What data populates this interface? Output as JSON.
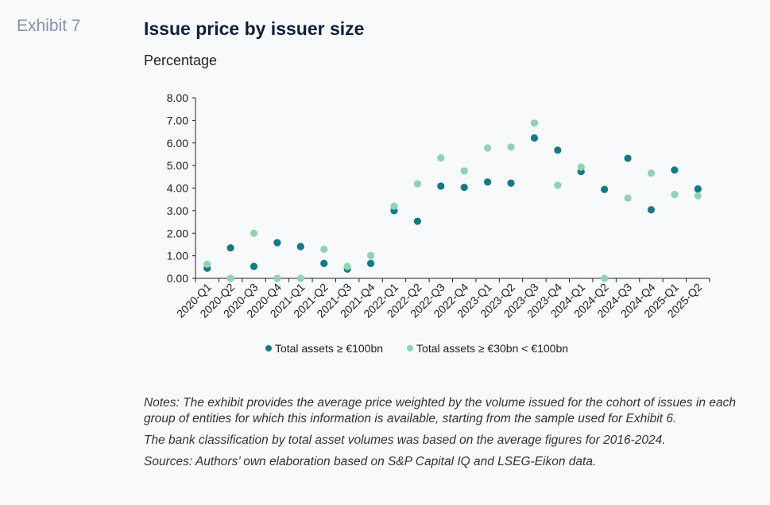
{
  "header": {
    "exhibit": "Exhibit 7",
    "title": "Issue price by issuer size",
    "subtitle": "Percentage"
  },
  "colors": {
    "series_large": "#167986",
    "series_mid": "#90d2b3",
    "axis": "#222222"
  },
  "chart_data": {
    "type": "scatter",
    "title": "Issue price by issuer size",
    "ylabel": "Percentage",
    "xlabel": "",
    "ylim": [
      0,
      8
    ],
    "y_ticks": [
      "0.00",
      "1.00",
      "2.00",
      "3.00",
      "4.00",
      "5.00",
      "6.00",
      "7.00",
      "8.00"
    ],
    "grid": false,
    "legend_position": "bottom",
    "categories": [
      "2020-Q1",
      "2020-Q2",
      "2020-Q3",
      "2020-Q4",
      "2021-Q1",
      "2021-Q2",
      "2021-Q3",
      "2021-Q4",
      "2022-Q1",
      "2022-Q2",
      "2022-Q3",
      "2022-Q4",
      "2023-Q1",
      "2023-Q2",
      "2023-Q3",
      "2023-Q4",
      "2024-Q1",
      "2024-Q2",
      "2024-Q3",
      "2024-Q4",
      "2025-Q1",
      "2025-Q2"
    ],
    "series": [
      {
        "name": "Total assets ≥ €100bn",
        "values": [
          0.45,
          1.35,
          0.53,
          1.58,
          1.41,
          0.66,
          0.41,
          0.66,
          3.0,
          2.53,
          4.09,
          4.03,
          4.27,
          4.22,
          6.22,
          5.68,
          4.73,
          3.94,
          5.32,
          3.04,
          4.8,
          3.96
        ]
      },
      {
        "name": "Total assets ≥ €30bn < €100bn",
        "values": [
          0.63,
          0.0,
          2.0,
          0.0,
          0.0,
          1.29,
          0.53,
          1.01,
          3.2,
          4.19,
          5.34,
          4.76,
          5.78,
          5.82,
          6.88,
          4.13,
          4.93,
          0.0,
          3.56,
          4.66,
          3.72,
          3.66
        ]
      }
    ]
  },
  "notes": [
    "Notes: The exhibit provides the average price weighted by the volume issued for the cohort of issues in each group of entities for which this information is available, starting from the sample used for Exhibit 6.",
    "The bank classification by total asset volumes was based on the average figures for 2016-2024.",
    "Sources: Authors’ own elaboration based on S&P Capital IQ and LSEG-Eikon data."
  ]
}
